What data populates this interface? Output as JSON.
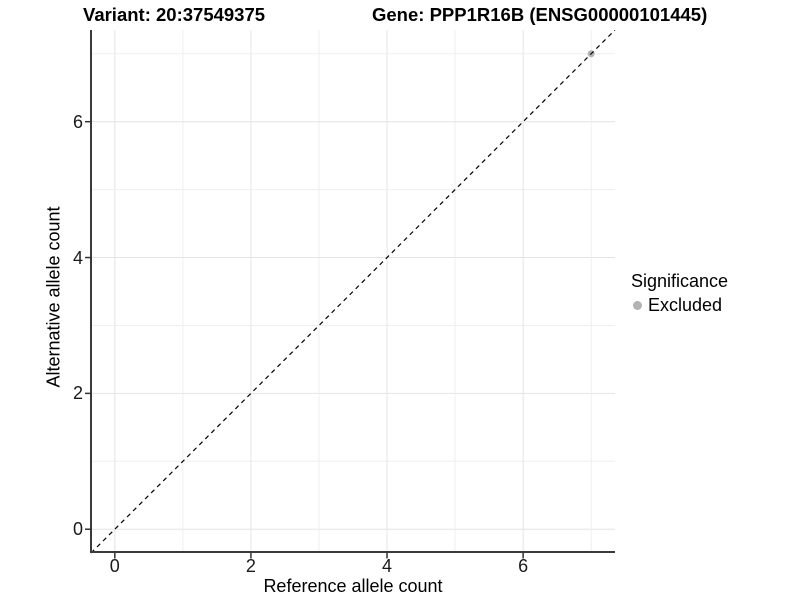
{
  "figure": {
    "title_left": "Variant: 20:37549375",
    "title_right": "Gene: PPP1R16B (ENSG00000101445)"
  },
  "axes": {
    "x_label": "Reference allele count",
    "y_label": "Alternative allele count"
  },
  "legend": {
    "title": "Significance",
    "items": [
      {
        "label": "Excluded",
        "color": "#b3b3b3"
      }
    ]
  },
  "colors": {
    "grid_major": "#e4e4e4",
    "grid_minor": "#efefef",
    "axis_line": "#3a3a3a",
    "tick_mark": "#333333",
    "dashed_line": "#000000",
    "background": "#ffffff"
  },
  "chart_data": {
    "type": "scatter",
    "title": "Variant: 20:37549375 / Gene: PPP1R16B (ENSG00000101445)",
    "xlabel": "Reference allele count",
    "ylabel": "Alternative allele count",
    "xlim": [
      -0.35,
      7.35
    ],
    "ylim": [
      -0.35,
      7.35
    ],
    "x_ticks": [
      0,
      2,
      4,
      6
    ],
    "y_ticks": [
      0,
      2,
      4,
      6
    ],
    "grid": true,
    "grid_interval": 1,
    "legend_position": "right",
    "series": [
      {
        "name": "Excluded",
        "color": "#b3b3b3",
        "points": [
          [
            7,
            7
          ]
        ]
      }
    ],
    "reference_line": {
      "style": "dashed",
      "color": "#000000",
      "from": [
        -0.35,
        -0.35
      ],
      "to": [
        7.35,
        7.35
      ]
    }
  }
}
